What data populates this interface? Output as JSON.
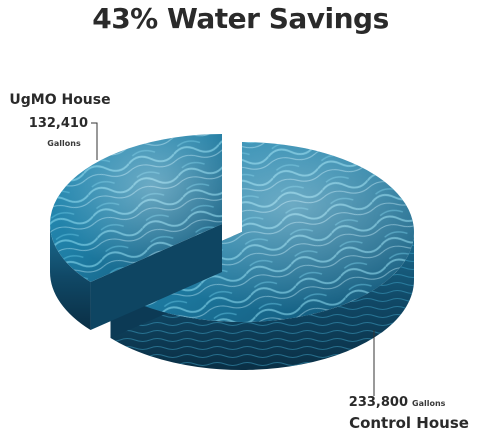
{
  "chart_data": {
    "type": "pie",
    "title": "43% Water Savings",
    "unit": "Gallons",
    "slices": [
      {
        "label": "UgMO House",
        "value": 132410,
        "value_text": "132,410"
      },
      {
        "label": "Control House",
        "value": 233800,
        "value_text": "233,800"
      }
    ],
    "colors": {
      "water_dark": "#0d3d57",
      "water_mid": "#1f7fa6",
      "water_light": "#6fd0ea",
      "highlight": "#d9f6ff"
    }
  }
}
